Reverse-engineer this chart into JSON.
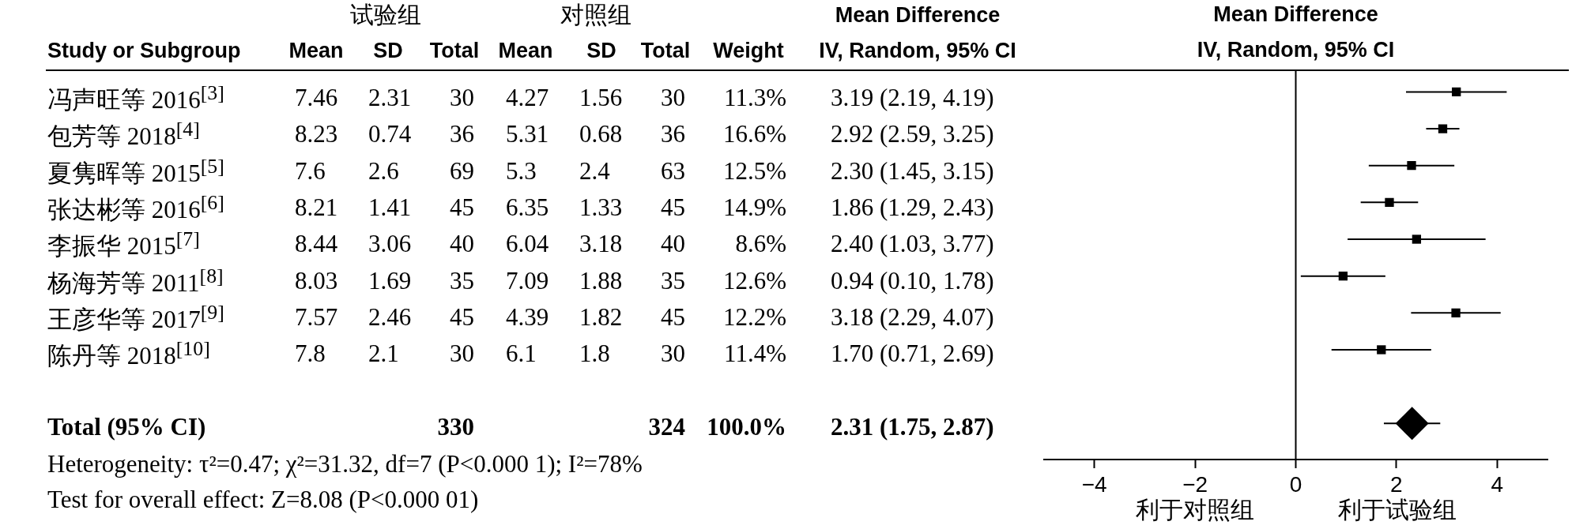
{
  "chart_data": [
    {
      "type": "other",
      "ylabel": "Study or Subgroup",
      "categories": [
        "冯声旺等 2016$^{[3]}$",
        "包芳等 2018$^{[4]}$",
        "夏隽晖等 2015$^{[5]}$",
        "张达彬等 2016$^{[6]}$",
        "李振华 2015$^{[7]}$",
        "杨海芳等 2011$^{[8]}$",
        "王彦华等 2017$^{[9]}$",
        "陈丹等 2018$^{[10]}$",
        null,
        "Total (95% CI)"
      ],
      "series": [
        {
          "name": "Mean",
          "values": [
            7.46,
            8.23,
            7.6,
            8.21,
            8.44,
            8.03,
            7.57,
            7.8,
            null,
            null
          ]
        },
        {
          "name": "SD",
          "values": [
            2.31,
            0.74,
            2.6,
            1.41,
            3.06,
            1.69,
            2.46,
            2.1,
            null,
            null
          ]
        },
        {
          "name": "Total",
          "values": [
            30,
            36,
            69,
            45,
            40,
            35,
            45,
            30,
            null,
            330
          ]
        },
        {
          "name": "Mean",
          "values": [
            4.27,
            5.31,
            5.3,
            6.35,
            6.04,
            7.09,
            4.39,
            6.1,
            null,
            null
          ]
        },
        {
          "name": "SD",
          "values": [
            1.56,
            0.68,
            2.4,
            1.33,
            3.18,
            1.88,
            1.82,
            1.8,
            null,
            null
          ]
        },
        {
          "name": "Total",
          "values": [
            30,
            36,
            63,
            45,
            40,
            35,
            45,
            30,
            null,
            324
          ]
        },
        {
          "name": "Weight",
          "values": [
            11.3,
            16.6,
            12.5,
            14.9,
            8.6,
            12.6,
            12.2,
            11.4,
            null,
            100.0
          ],
          "value_labels": [
            "11.3%",
            "16.6%",
            "12.5%",
            "14.9%",
            "8.6%",
            "12.6%",
            "12.2%",
            "11.4%",
            null,
            "100.0%"
          ]
        },
        {
          "name": "Mean Difference\nIV, Random, 95% CI",
          "values": [
            3.19,
            2.92,
            2.3,
            1.86,
            2.4,
            0.94,
            3.18,
            1.7,
            null,
            2.31
          ],
          "value_labels": [
            "3.19 (2.19, 4.19)",
            "2.92 (2.59, 3.25)",
            "2.30 (1.45, 3.15)",
            "1.86 (1.29, 2.43)",
            "2.40 (1.03, 3.77)",
            "0.94 (0.10, 1.78)",
            "3.18 (2.29, 4.07)",
            "1.70 (0.71, 2.69)",
            null,
            "2.31 (1.75, 2.87)"
          ]
        }
      ],
      "data_labels": true,
      "annotations": [
        "试验组",
        "对照组",
        "Heterogeneity: τ²=0.47; χ²=31.32, df=7 (P<0.000 1); I²=78%",
        "Test for overall effect: Z=8.08 (P<0.000 01)"
      ]
    },
    {
      "type": "scatter",
      "title": "Mean Difference",
      "subtitle": "IV, Random, 95% CI",
      "orientation": "horizontal",
      "categories": [
        null,
        null,
        null,
        null,
        null,
        null,
        null,
        null,
        null,
        null
      ],
      "series": [
        {
          "color": "#000000",
          "marker": "square",
          "values": [
            3.19,
            2.92,
            2.3,
            1.86,
            2.4,
            0.94,
            3.18,
            1.7,
            null,
            null
          ],
          "errors": [
            [
              2.19,
              4.19
            ],
            [
              2.59,
              3.25
            ],
            [
              1.45,
              3.15
            ],
            [
              1.29,
              2.43
            ],
            [
              1.03,
              3.77
            ],
            [
              0.1,
              1.78
            ],
            [
              2.29,
              4.07
            ],
            [
              0.71,
              2.69
            ],
            null,
            null
          ]
        },
        {
          "color": "#000000",
          "marker": "diamond",
          "values": [
            null,
            null,
            null,
            null,
            null,
            null,
            null,
            null,
            null,
            2.31
          ],
          "errors": [
            null,
            null,
            null,
            null,
            null,
            null,
            null,
            null,
            null,
            [
              1.75,
              2.87
            ]
          ]
        }
      ],
      "xlim": [
        -5,
        5
      ],
      "xticks": [
        {
          "value": -4,
          "label": "−4"
        },
        {
          "value": -2,
          "label": "−2"
        },
        0,
        2,
        4
      ],
      "ref_lines": [
        {
          "axis": "x",
          "value": 0,
          "color": "#000000"
        }
      ],
      "tick_labels": "x",
      "annotations": [
        "利于对照组",
        "利于试验组"
      ]
    }
  ]
}
